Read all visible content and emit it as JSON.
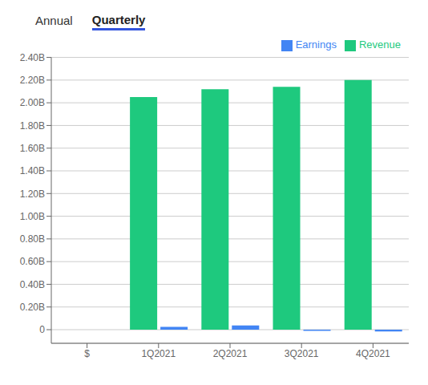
{
  "chart_data": {
    "type": "bar",
    "title": "Annual",
    "subtitle": "Quarterly",
    "categories": [
      "$",
      "1Q2021",
      "2Q2021",
      "3Q2021",
      "4Q2021"
    ],
    "series": [
      {
        "name": "Revenue",
        "color": "#1ec97e",
        "values": [
          null,
          2.05,
          2.12,
          2.14,
          2.2
        ]
      },
      {
        "name": "Earnings",
        "color": "#4285f4",
        "values": [
          null,
          0.025,
          0.037,
          -0.01,
          -0.015
        ]
      }
    ],
    "ylim": [
      -0.12,
      2.4
    ],
    "yticks": [
      0,
      {
        "value": 0.2,
        "label": "0.20B"
      },
      {
        "value": 0.4,
        "label": "0.40B"
      },
      {
        "value": 0.6,
        "label": "0.60B"
      },
      {
        "value": 0.8,
        "label": "0.80B"
      },
      {
        "value": 1.0,
        "label": "1.00B"
      },
      {
        "value": 1.2,
        "label": "1.20B"
      },
      {
        "value": 1.4,
        "label": "1.40B"
      },
      {
        "value": 1.6,
        "label": "1.60B"
      },
      {
        "value": 1.8,
        "label": "1.80B"
      },
      {
        "value": 2.0,
        "label": "2.00B"
      },
      {
        "value": 2.2,
        "label": "2.20B"
      },
      {
        "value": 2.4,
        "label": "2.40B"
      }
    ],
    "grid": true,
    "legend": "upper right"
  }
}
